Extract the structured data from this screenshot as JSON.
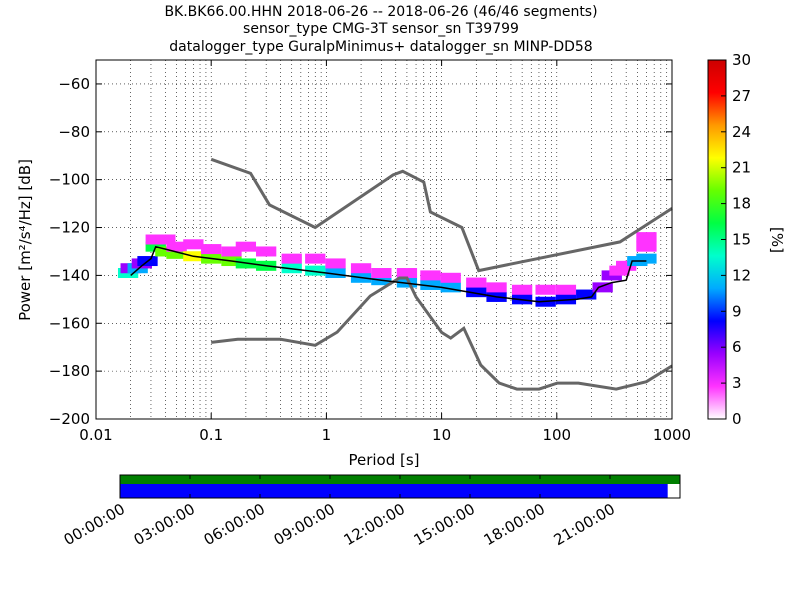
{
  "chart_data": {
    "type": "heatmap",
    "title_lines": [
      "BK.BK66.00.HHN   2018-06-26 -- 2018-06-26  (46/46 segments)",
      "sensor_type CMG-3T sensor_sn T39799",
      "datalogger_type GuralpMinimus+ datalogger_sn MINP-DD58"
    ],
    "xlabel": "Period [s]",
    "ylabel": "Power [m²/s⁴/Hz] [dB]",
    "x_scale": "log",
    "xlim": [
      0.01,
      1000
    ],
    "ylim": [
      -200,
      -50
    ],
    "x_tick_labels": [
      "0.01",
      "0.1",
      "1",
      "10",
      "100",
      "1000"
    ],
    "y_tick_labels": [
      "−60",
      "−80",
      "−100",
      "−120",
      "−140",
      "−160",
      "−180",
      "−200"
    ],
    "y_tick_values": [
      -60,
      -80,
      -100,
      -120,
      -140,
      -160,
      -180,
      -200
    ],
    "grid": true,
    "colorbar": {
      "label": "[%]",
      "range": [
        0,
        30
      ],
      "tick_labels": [
        "0",
        "3",
        "6",
        "9",
        "12",
        "15",
        "18",
        "21",
        "24",
        "27",
        "30"
      ],
      "colors": [
        "#ffffff",
        "#ff33ff",
        "#9900ff",
        "#0000ff",
        "#00aaff",
        "#00ffcc",
        "#00ff44",
        "#66ff00",
        "#ffff00",
        "#ff9900",
        "#ff0000",
        "#cc0000"
      ]
    },
    "noise_model_high": [
      [
        0.1,
        -91.5
      ],
      [
        0.22,
        -97.4
      ],
      [
        0.32,
        -110.5
      ],
      [
        0.8,
        -120
      ],
      [
        3.8,
        -98
      ],
      [
        4.6,
        -96.5
      ],
      [
        7,
        -101
      ],
      [
        8,
        -113.5
      ],
      [
        15,
        -120
      ],
      [
        21,
        -138
      ],
      [
        354,
        -126
      ],
      [
        1000,
        -112
      ]
    ],
    "noise_model_low": [
      [
        0.1,
        -168
      ],
      [
        0.17,
        -166.7
      ],
      [
        0.4,
        -166.7
      ],
      [
        0.8,
        -169.2
      ],
      [
        1.24,
        -163.7
      ],
      [
        2.4,
        -148.6
      ],
      [
        4.3,
        -141.1
      ],
      [
        5,
        -141.1
      ],
      [
        6,
        -149
      ],
      [
        10,
        -163.8
      ],
      [
        12,
        -166.2
      ],
      [
        15.6,
        -162.1
      ],
      [
        21.9,
        -177.5
      ],
      [
        31.6,
        -185
      ],
      [
        45,
        -187.5
      ],
      [
        70,
        -187.5
      ],
      [
        101,
        -185
      ],
      [
        154,
        -185
      ],
      [
        328,
        -187.5
      ],
      [
        600,
        -184.4
      ],
      [
        1000,
        -177.8
      ]
    ],
    "mode_line": [
      [
        0.02,
        -140
      ],
      [
        0.025,
        -136
      ],
      [
        0.03,
        -133
      ],
      [
        0.033,
        -128
      ],
      [
        0.04,
        -129
      ],
      [
        0.07,
        -132
      ],
      [
        0.15,
        -134
      ],
      [
        0.3,
        -136
      ],
      [
        1,
        -139
      ],
      [
        3,
        -142
      ],
      [
        10,
        -145
      ],
      [
        30,
        -149
      ],
      [
        70,
        -151
      ],
      [
        150,
        -150
      ],
      [
        200,
        -149
      ],
      [
        230,
        -145
      ],
      [
        300,
        -143
      ],
      [
        400,
        -142
      ],
      [
        450,
        -134
      ],
      [
        600,
        -134
      ]
    ],
    "density_cells": [
      {
        "x": 0.019,
        "y": -139,
        "pct": 14
      },
      {
        "x": 0.02,
        "y": -137,
        "pct": 6
      },
      {
        "x": 0.023,
        "y": -137,
        "pct": 10
      },
      {
        "x": 0.025,
        "y": -135,
        "pct": 6
      },
      {
        "x": 0.028,
        "y": -134,
        "pct": 8
      },
      {
        "x": 0.033,
        "y": -128,
        "pct": 16
      },
      {
        "x": 0.033,
        "y": -125,
        "pct": 2
      },
      {
        "x": 0.04,
        "y": -130,
        "pct": 18
      },
      {
        "x": 0.04,
        "y": -125,
        "pct": 2
      },
      {
        "x": 0.05,
        "y": -131,
        "pct": 20
      },
      {
        "x": 0.05,
        "y": -128,
        "pct": 4
      },
      {
        "x": 0.07,
        "y": -132,
        "pct": 22
      },
      {
        "x": 0.07,
        "y": -127,
        "pct": 3
      },
      {
        "x": 0.1,
        "y": -133,
        "pct": 20
      },
      {
        "x": 0.1,
        "y": -129,
        "pct": 4
      },
      {
        "x": 0.15,
        "y": -134,
        "pct": 18
      },
      {
        "x": 0.15,
        "y": -130,
        "pct": 3
      },
      {
        "x": 0.2,
        "y": -135,
        "pct": 16
      },
      {
        "x": 0.2,
        "y": -128,
        "pct": 2
      },
      {
        "x": 0.3,
        "y": -136,
        "pct": 16
      },
      {
        "x": 0.3,
        "y": -130,
        "pct": 3
      },
      {
        "x": 0.5,
        "y": -137,
        "pct": 14
      },
      {
        "x": 0.5,
        "y": -133,
        "pct": 4
      },
      {
        "x": 0.8,
        "y": -138,
        "pct": 14
      },
      {
        "x": 0.8,
        "y": -133,
        "pct": 2
      },
      {
        "x": 1.2,
        "y": -139,
        "pct": 12
      },
      {
        "x": 1.2,
        "y": -135,
        "pct": 3
      },
      {
        "x": 2,
        "y": -141,
        "pct": 12
      },
      {
        "x": 2,
        "y": -137,
        "pct": 3
      },
      {
        "x": 3,
        "y": -142,
        "pct": 10
      },
      {
        "x": 3,
        "y": -139,
        "pct": 3
      },
      {
        "x": 5,
        "y": -143,
        "pct": 10
      },
      {
        "x": 5,
        "y": -139,
        "pct": 2
      },
      {
        "x": 8,
        "y": -144,
        "pct": 10
      },
      {
        "x": 8,
        "y": -140,
        "pct": 2
      },
      {
        "x": 12,
        "y": -145,
        "pct": 10
      },
      {
        "x": 12,
        "y": -141,
        "pct": 2
      },
      {
        "x": 20,
        "y": -147,
        "pct": 9
      },
      {
        "x": 20,
        "y": -143,
        "pct": 2
      },
      {
        "x": 30,
        "y": -149,
        "pct": 9
      },
      {
        "x": 30,
        "y": -145,
        "pct": 2
      },
      {
        "x": 50,
        "y": -150,
        "pct": 9
      },
      {
        "x": 50,
        "y": -146,
        "pct": 2
      },
      {
        "x": 80,
        "y": -151,
        "pct": 8
      },
      {
        "x": 80,
        "y": -146,
        "pct": 3
      },
      {
        "x": 120,
        "y": -150,
        "pct": 8
      },
      {
        "x": 120,
        "y": -146,
        "pct": 2
      },
      {
        "x": 180,
        "y": -148,
        "pct": 7
      },
      {
        "x": 250,
        "y": -145,
        "pct": 6
      },
      {
        "x": 300,
        "y": -140,
        "pct": 5
      },
      {
        "x": 350,
        "y": -138,
        "pct": 4
      },
      {
        "x": 400,
        "y": -136,
        "pct": 4
      },
      {
        "x": 500,
        "y": -134,
        "pct": 10
      },
      {
        "x": 600,
        "y": -133,
        "pct": 12
      },
      {
        "x": 600,
        "y": -128,
        "pct": 2
      },
      {
        "x": 600,
        "y": -124,
        "pct": 2
      }
    ],
    "timeline": {
      "tick_labels": [
        "00:00:00",
        "03:00:00",
        "06:00:00",
        "09:00:00",
        "12:00:00",
        "15:00:00",
        "18:00:00",
        "21:00:00"
      ],
      "data_coverage": [
        0,
        1
      ],
      "psd_coverage": [
        0,
        0.978
      ],
      "data_color": "#007f00",
      "psd_color": "#0000ff"
    }
  }
}
